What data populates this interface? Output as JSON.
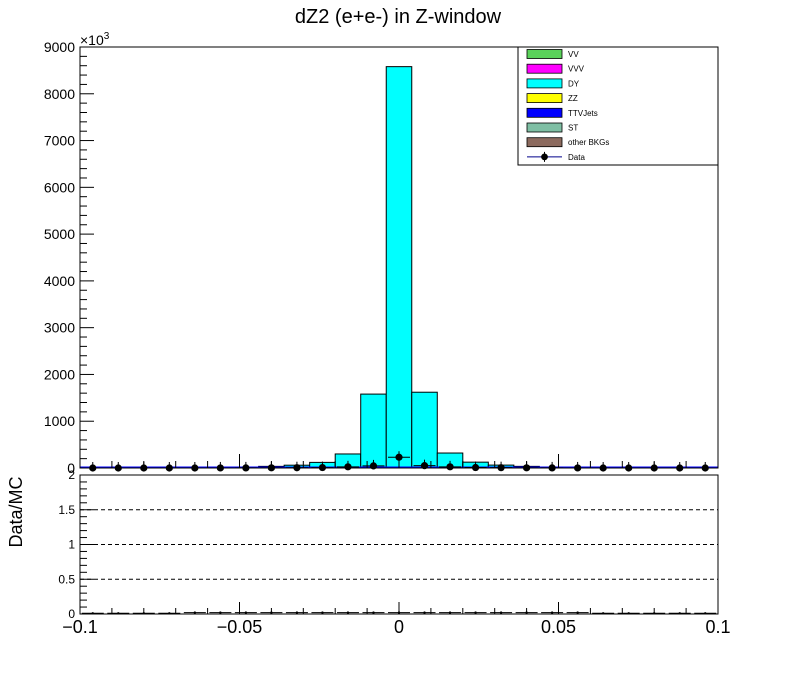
{
  "chart_data": [
    {
      "type": "bar",
      "title": "dZ2 (e+e-) in Z-window",
      "ylabel": "",
      "xlabel": "",
      "y_multiplier": "×10",
      "y_multiplier_exp": "3",
      "xlim": [
        -0.1,
        0.1
      ],
      "ylim": [
        0,
        9000
      ],
      "y_ticks": [
        0,
        1000,
        2000,
        3000,
        4000,
        5000,
        6000,
        7000,
        8000,
        9000
      ],
      "y_tick_labels": [
        "0",
        "1000",
        "2000",
        "3000",
        "4000",
        "5000",
        "6000",
        "7000",
        "8000",
        "9000"
      ],
      "bin_edges": [
        -0.1,
        -0.092,
        -0.084,
        -0.076,
        -0.068,
        -0.06,
        -0.052,
        -0.044,
        -0.036,
        -0.028,
        -0.02,
        -0.012,
        -0.004,
        0.004,
        0.012,
        0.02,
        0.028,
        0.036,
        0.044,
        0.052,
        0.06,
        0.068,
        0.076,
        0.084,
        0.092,
        0.1
      ],
      "stack_top_values": [
        1,
        2,
        3,
        5,
        8,
        12,
        20,
        35,
        60,
        120,
        300,
        1580,
        8580,
        1620,
        320,
        125,
        62,
        35,
        20,
        12,
        8,
        5,
        3,
        2,
        1
      ],
      "data_points": {
        "x": [
          -0.096,
          -0.088,
          -0.08,
          -0.072,
          -0.064,
          -0.056,
          -0.048,
          -0.04,
          -0.032,
          -0.024,
          -0.016,
          -0.008,
          0.0,
          0.008,
          0.016,
          0.024,
          0.032,
          0.04,
          0.048,
          0.056,
          0.064,
          0.072,
          0.08,
          0.088,
          0.096
        ],
        "y": [
          0,
          0,
          0,
          0,
          0,
          1,
          2,
          4,
          6,
          9,
          25,
          45,
          230,
          50,
          25,
          10,
          7,
          4,
          2,
          1,
          0,
          0,
          0,
          0,
          0
        ]
      },
      "legend_position": "top-right",
      "legend": [
        {
          "name": "VV",
          "color": "#5ad25a",
          "kind": "box"
        },
        {
          "name": "VVV",
          "color": "#ff00ff",
          "kind": "box"
        },
        {
          "name": "DY",
          "color": "#00ffff",
          "kind": "box"
        },
        {
          "name": "ZZ",
          "color": "#ffff00",
          "kind": "box"
        },
        {
          "name": "TTVJets",
          "color": "#0000ff",
          "kind": "box"
        },
        {
          "name": "ST",
          "color": "#7fbfa4",
          "kind": "box"
        },
        {
          "name": "other BKGs",
          "color": "#8c6a5e",
          "kind": "box"
        },
        {
          "name": "Data",
          "color": "#000000",
          "kind": "marker"
        }
      ],
      "stack_fill_color": "#00ffff",
      "grid": false
    },
    {
      "type": "scatter",
      "ylabel": "Data/MC",
      "xlim": [
        -0.1,
        0.1
      ],
      "ylim": [
        0,
        2
      ],
      "y_ticks": [
        0,
        0.5,
        1,
        1.5,
        2
      ],
      "y_tick_labels": [
        "0",
        "0.5",
        "1",
        "1.5",
        "2"
      ],
      "x_ticks": [
        -0.1,
        -0.05,
        0,
        0.05,
        0.1
      ],
      "x_tick_labels": [
        "−0.1",
        "−0.05",
        "0",
        "0.05",
        "0.1"
      ],
      "reference_lines": [
        0.5,
        1,
        1.5
      ],
      "ratio_points": {
        "x": [
          -0.096,
          -0.088,
          -0.08,
          -0.072,
          -0.064,
          -0.056,
          -0.048,
          -0.04,
          -0.032,
          -0.024,
          -0.016,
          -0.008,
          0.0,
          0.008,
          0.016,
          0.024,
          0.032,
          0.04,
          0.048,
          0.056,
          0.064,
          0.072,
          0.08,
          0.088,
          0.096
        ],
        "y": [
          0.01,
          0.01,
          0.01,
          0.01,
          0.02,
          0.02,
          0.02,
          0.02,
          0.02,
          0.02,
          0.02,
          0.02,
          0.02,
          0.02,
          0.02,
          0.02,
          0.02,
          0.02,
          0.02,
          0.02,
          0.01,
          0.01,
          0.01,
          0.01,
          0.01
        ]
      },
      "grid": false
    }
  ]
}
